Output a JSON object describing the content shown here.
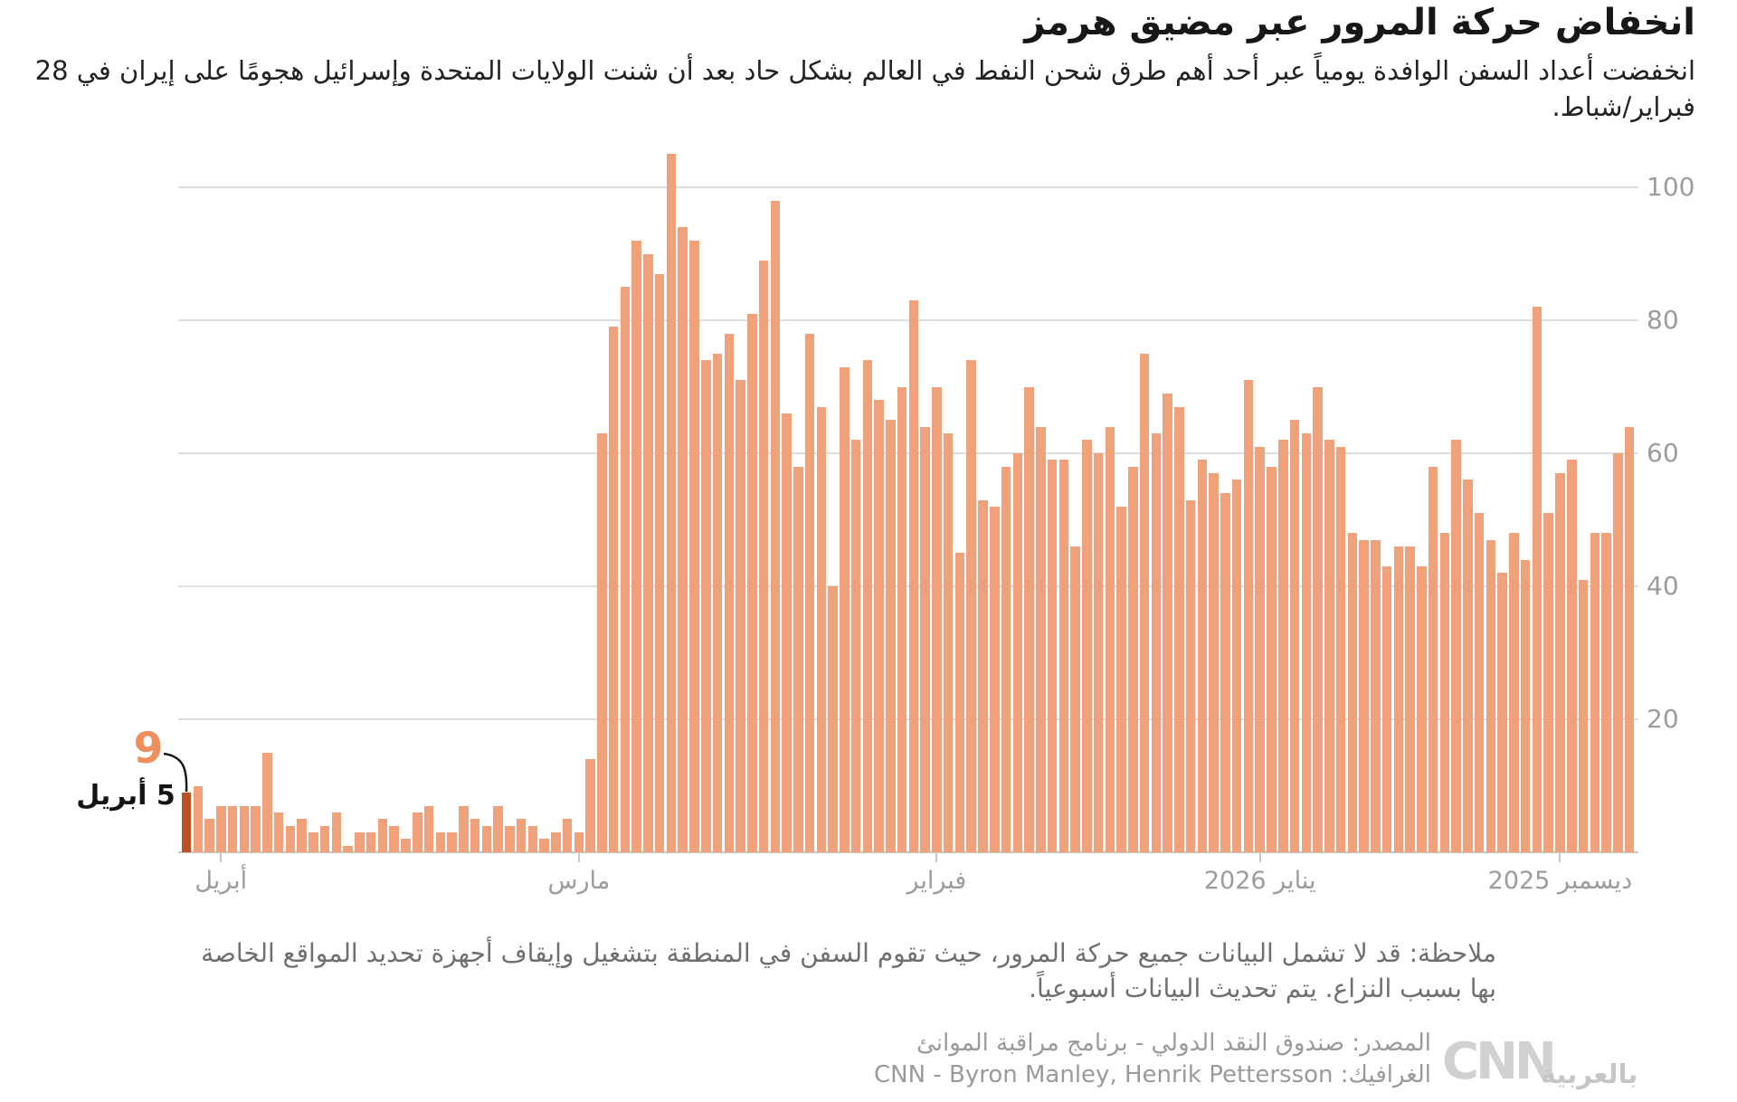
{
  "header": {
    "title": "انخفاض حركة المرور عبر مضيق هرمز",
    "subtitle": "انخفضت أعداد السفن الوافدة يومياً عبر أحد أهم طرق شحن النفط في العالم بشكل حاد بعد أن شنت الولايات المتحدة وإسرائيل هجومًا على إيران في 28 فبراير/شباط."
  },
  "chart_data": {
    "type": "bar",
    "title": "أعداد السفن الوافدة يومياً عبر مضيق هرمز",
    "direction": "rtl",
    "x_start": "1 ديسمبر 2025",
    "x_end": "5 أبريل 2026",
    "ylim": [
      0,
      108
    ],
    "grid": true,
    "y_ticks": [
      20,
      40,
      60,
      80,
      100
    ],
    "y_axis_side": "right",
    "x_ticks": [
      {
        "label": "ديسمبر 2025",
        "day": 6
      },
      {
        "label": "يناير 2026",
        "day": 32
      },
      {
        "label": "فبراير",
        "day": 60
      },
      {
        "label": "مارس",
        "day": 91
      },
      {
        "label": "أبريل",
        "day": 122
      }
    ],
    "values": [
      64,
      60,
      48,
      48,
      41,
      59,
      57,
      51,
      82,
      44,
      48,
      42,
      47,
      51,
      56,
      62,
      48,
      58,
      43,
      46,
      46,
      43,
      47,
      47,
      48,
      61,
      62,
      70,
      63,
      65,
      62,
      58,
      61,
      71,
      56,
      54,
      57,
      59,
      53,
      67,
      69,
      63,
      75,
      58,
      52,
      64,
      60,
      62,
      46,
      59,
      59,
      64,
      70,
      60,
      58,
      52,
      53,
      74,
      45,
      63,
      70,
      64,
      83,
      70,
      65,
      68,
      74,
      62,
      73,
      40,
      67,
      78,
      58,
      66,
      98,
      89,
      81,
      71,
      78,
      75,
      74,
      92,
      94,
      105,
      87,
      90,
      92,
      85,
      79,
      63,
      14,
      3,
      5,
      3,
      2,
      4,
      5,
      4,
      7,
      4,
      5,
      7,
      3,
      3,
      7,
      6,
      2,
      4,
      5,
      3,
      3,
      1,
      6,
      4,
      3,
      5,
      4,
      6,
      15,
      7,
      7,
      7,
      7,
      5,
      10,
      9
    ],
    "highlight": {
      "index": 125,
      "value_label": "9",
      "date_label": "5 أبريل"
    },
    "bar_color": "#f1a17a",
    "highlight_color": "#bc4f24",
    "grid_color": "#dedede",
    "axis_text_color": "#9c9c9c"
  },
  "annotation": {
    "value": "9",
    "date": "5 أبريل"
  },
  "footer": {
    "note": "ملاحظة: قد لا تشمل البيانات جميع حركة المرور، حيث تقوم السفن في المنطقة بتشغيل وإيقاف أجهزة تحديد المواقع الخاصة بها بسبب النزاع. يتم تحديث البيانات أسبوعياً.",
    "source": "المصدر: صندوق النقد الدولي - برنامج مراقبة الموانئ",
    "credit": "الغرافيك: CNN - Byron Manley, Henrik Pettersson",
    "logo": {
      "cnn": "CNN",
      "arabic": "بالعربية"
    }
  }
}
